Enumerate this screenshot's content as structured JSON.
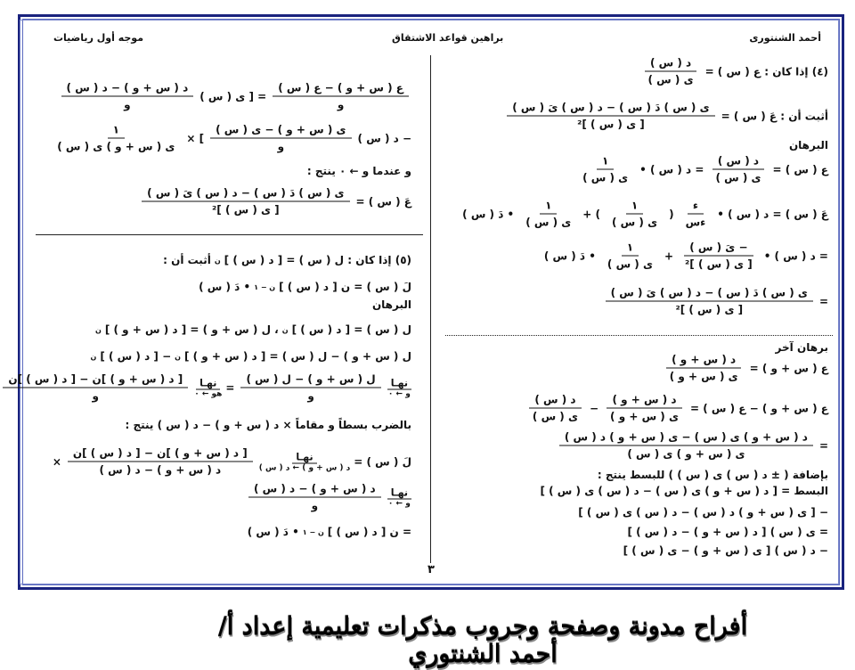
{
  "header": {
    "author": "أحمد الشنتورى",
    "title": "براهين قواعد الاشتقاق",
    "role": "موجه أول رياضيات"
  },
  "page_number": "٣",
  "watermark": "أفراح مدونة وصفحة وجروب مذكرات تعليمية إعداد أ/ أحمد الشنتوري",
  "colors": {
    "frame": "#1a237e",
    "text": "#111111"
  },
  "right_column": [
    [
      {
        "t": "(٤) إذا كان : ع ( س ) ="
      },
      {
        "n": "د ( س )",
        "d": "ى ( س )"
      }
    ],
    [
      {
        "t": "أثبت أن : عَ ( س ) ="
      },
      {
        "n": "ى ( س ) دَ ( س ) − د ( س ) ىَ ( س )",
        "d": "[ ى ( س ) ]²"
      }
    ],
    [
      {
        "t": "البرهان"
      }
    ],
    [
      {
        "t": "ع ( س ) ="
      },
      {
        "n": "د ( س )",
        "d": "ى ( س )"
      },
      {
        "t": "= د ( س ) •"
      },
      {
        "n": "١",
        "d": "ى ( س )"
      }
    ],
    [
      {
        "t": "عَ ( س ) = د ( س ) •"
      },
      {
        "n": "ء",
        "d": "ءس"
      },
      {
        "t": "("
      },
      {
        "n": "١",
        "d": "ى ( س )"
      },
      {
        "t": ") +"
      },
      {
        "n": "١",
        "d": "ى ( س )"
      },
      {
        "t": "• دَ ( س )"
      }
    ],
    [
      {
        "t": "= د ( س ) •"
      },
      {
        "n": "− ىَ ( س )",
        "d": "[ ى ( س ) ]²"
      },
      {
        "t": "+"
      },
      {
        "n": "١",
        "d": "ى ( س )"
      },
      {
        "t": "• دَ ( س )"
      }
    ],
    [
      {
        "t": "="
      },
      {
        "n": "ى ( س ) دَ ( س ) − د ( س ) ىَ ( س )",
        "d": "[ ى ( س ) ]²"
      }
    ],
    [
      {
        "t": "برهان آخر"
      }
    ],
    [
      {
        "t": "ع ( س + و ) ="
      },
      {
        "n": "د ( س + و )",
        "d": "ى ( س + و )"
      }
    ],
    [
      {
        "t": "ع ( س + و ) − ع ( س ) ="
      },
      {
        "n": "د ( س + و )",
        "d": "ى ( س + و )"
      },
      {
        "t": "−"
      },
      {
        "n": "د ( س )",
        "d": "ى ( س )"
      }
    ],
    [
      {
        "t": "="
      },
      {
        "n": "د ( س + و ) ى ( س ) − ى ( س + و ) د ( س )",
        "d": "ى ( س + و ) ى ( س )"
      }
    ],
    [
      {
        "t": "بإضافة ( ± د ( س ) ى ( س ) ) للبسط ينتج :"
      }
    ],
    [
      {
        "t": "البسط = [ د ( س + و ) ى ( س ) − د ( س ) ى ( س ) ]"
      }
    ],
    [
      {
        "t": "− [ ى ( س + و ) د ( س ) − د ( س ) ى ( س ) ]"
      }
    ],
    [
      {
        "t": "= ى ( س ) [ د ( س + و ) − د ( س ) ]"
      }
    ],
    [
      {
        "t": "− د ( س ) [ ى ( س + و ) − ى ( س ) ]"
      }
    ]
  ],
  "left_column": [
    [
      {
        "n": "ع ( س + و ) − ع ( س )",
        "d": "و"
      },
      {
        "t": "= [ ى ( س )"
      },
      {
        "n": "د ( س + و ) − د ( س )",
        "d": "و"
      }
    ],
    [
      {
        "t": "− د ( س )"
      },
      {
        "n": "ى ( س + و ) − ى ( س )",
        "d": "و"
      },
      {
        "t": "] ×"
      },
      {
        "n": "١",
        "d": "ى ( س + و ) ى ( س )"
      }
    ],
    [
      {
        "t": "و عندما و ← ٠  ينتج :"
      }
    ],
    [
      {
        "t": "عَ ( س ) ="
      },
      {
        "n": "ى ( س ) دَ ( س ) − د ( س ) ىَ ( س )",
        "d": "[ ى ( س ) ]²"
      }
    ],
    [
      {
        "t": "(٥) إذا كان : ل ( س ) = [ د ( س ) ]"
      },
      {
        "s": "ن"
      },
      {
        "t": "  أثبت أن :"
      }
    ],
    [
      {
        "t": "لَ ( س ) = ن [ د ( س ) ]"
      },
      {
        "s": "ن − ١"
      },
      {
        "t": "• دَ ( س )"
      }
    ],
    [
      {
        "t": "البرهان"
      }
    ],
    [
      {
        "t": "ل ( س ) = [ د ( س ) ]"
      },
      {
        "s": "ن"
      },
      {
        "t": "  ،  ل ( س + و ) = [ د ( س + و ) ]"
      },
      {
        "s": "ن"
      }
    ],
    [
      {
        "t": "ل ( س + و ) − ل ( س ) = [ د ( س + و ) ]"
      },
      {
        "s": "ن"
      },
      {
        "t": "− [ د ( س ) ]"
      },
      {
        "s": "ن"
      }
    ],
    [
      {
        "lt": "نهـا",
        "ls": "و ← ٠"
      },
      {
        "n": "ل ( س + و ) − ل ( س )",
        "d": "و"
      },
      {
        "t": "="
      },
      {
        "lt": "نهـا",
        "ls": "هو ← ٠"
      },
      {
        "n": "[ د ( س + و ) ]ن − [ د ( س ) ]ن",
        "d": "و"
      }
    ],
    [
      {
        "t": "بالضرب بسطاً و مقاماً × د ( س + و ) − د ( س )  ينتج :"
      }
    ],
    [
      {
        "t": "لَ ( س ) ="
      },
      {
        "lt": "نهـا",
        "ls": "د ( س + و ) ← د ( س )"
      },
      {
        "n": "[ د ( س + و ) ]ن − [ د ( س ) ]ن",
        "d": "د ( س + و ) − د ( س )"
      },
      {
        "t": "×"
      }
    ],
    [
      {
        "lt": "نهـا",
        "ls": "و ← ٠"
      },
      {
        "n": "د ( س + و ) − د ( س )",
        "d": "و"
      }
    ],
    [
      {
        "t": "= ن [ د ( س ) ]"
      },
      {
        "s": "ن − ١"
      },
      {
        "t": "• دَ ( س )"
      }
    ]
  ]
}
